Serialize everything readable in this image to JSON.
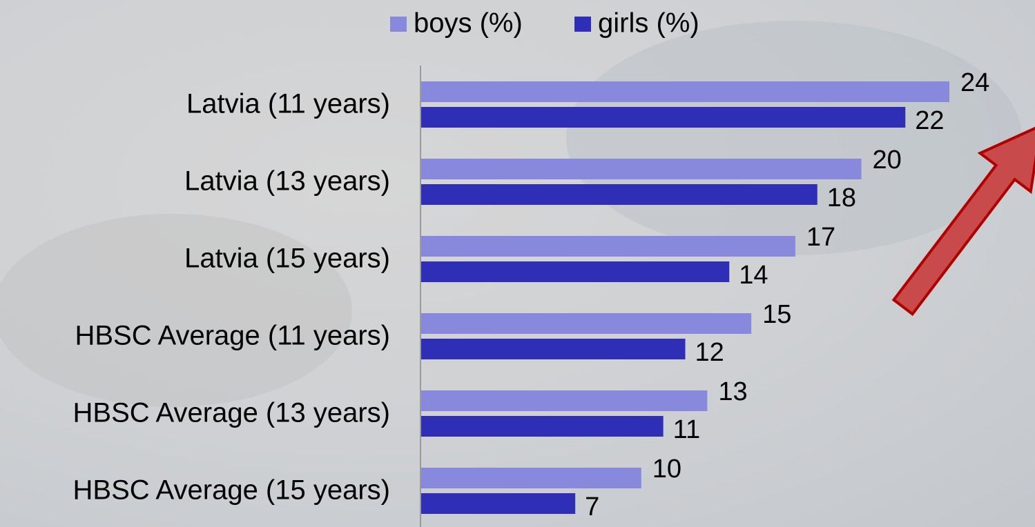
{
  "chart_data": {
    "type": "bar",
    "orientation": "horizontal",
    "categories": [
      "Latvia (11 years)",
      "Latvia (13 years)",
      "Latvia (15 years)",
      "HBSC Average (11 years)",
      "HBSC Average (13 years)",
      "HBSC Average (15 years)"
    ],
    "series": [
      {
        "name": "boys (%)",
        "color": "#8888dc",
        "values": [
          24,
          20,
          17,
          15,
          13,
          10
        ]
      },
      {
        "name": "girls (%)",
        "color": "#2e2eb6",
        "values": [
          22,
          18,
          14,
          12,
          11,
          7
        ]
      }
    ],
    "legend": "top",
    "data_labels": true
  }
}
